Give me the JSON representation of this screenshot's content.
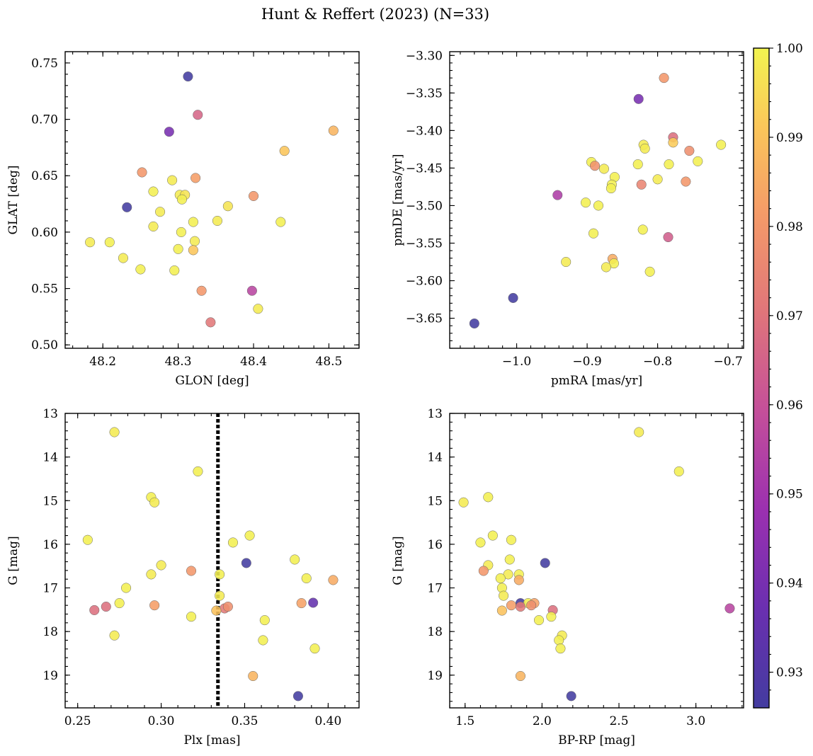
{
  "figure": {
    "title": "Hunt & Reffert (2023) (N=33)"
  },
  "colorbar": {
    "min": 0.926,
    "max": 1.0,
    "ticks": [
      "0.93",
      "0.94",
      "0.95",
      "0.96",
      "0.97",
      "0.98",
      "0.99",
      "1.00"
    ],
    "tick_values": [
      0.93,
      0.94,
      0.95,
      0.96,
      0.97,
      0.98,
      0.99,
      1.0
    ],
    "colormap": "plasma"
  },
  "chart_data": [
    {
      "type": "scatter",
      "xlabel": "GLON [deg]",
      "ylabel": "GLAT [deg]",
      "xlim": [
        48.15,
        48.54
      ],
      "ylim": [
        0.497,
        0.76
      ],
      "xticks": [
        48.2,
        48.3,
        48.4,
        48.5
      ],
      "xtick_labels": [
        "48.2",
        "48.3",
        "48.4",
        "48.5"
      ],
      "yticks": [
        0.5,
        0.55,
        0.6,
        0.65,
        0.7,
        0.75
      ],
      "ytick_labels": [
        "0.50",
        "0.55",
        "0.60",
        "0.65",
        "0.70",
        "0.75"
      ],
      "points": [
        {
          "x": 48.313,
          "y": 0.738,
          "c": 0.926
        },
        {
          "x": 48.326,
          "y": 0.704,
          "c": 0.966
        },
        {
          "x": 48.288,
          "y": 0.689,
          "c": 0.94
        },
        {
          "x": 48.506,
          "y": 0.69,
          "c": 0.987
        },
        {
          "x": 48.441,
          "y": 0.672,
          "c": 0.991
        },
        {
          "x": 48.252,
          "y": 0.653,
          "c": 0.98
        },
        {
          "x": 48.292,
          "y": 0.646,
          "c": 0.998
        },
        {
          "x": 48.323,
          "y": 0.648,
          "c": 0.982
        },
        {
          "x": 48.267,
          "y": 0.636,
          "c": 0.999
        },
        {
          "x": 48.302,
          "y": 0.633,
          "c": 0.998
        },
        {
          "x": 48.309,
          "y": 0.633,
          "c": 0.997
        },
        {
          "x": 48.305,
          "y": 0.629,
          "c": 0.999
        },
        {
          "x": 48.4,
          "y": 0.632,
          "c": 0.98
        },
        {
          "x": 48.366,
          "y": 0.623,
          "c": 0.997
        },
        {
          "x": 48.232,
          "y": 0.622,
          "c": 0.926
        },
        {
          "x": 48.276,
          "y": 0.618,
          "c": 0.998
        },
        {
          "x": 48.352,
          "y": 0.61,
          "c": 0.998
        },
        {
          "x": 48.32,
          "y": 0.609,
          "c": 0.999
        },
        {
          "x": 48.436,
          "y": 0.609,
          "c": 0.999
        },
        {
          "x": 48.267,
          "y": 0.605,
          "c": 0.998
        },
        {
          "x": 48.304,
          "y": 0.6,
          "c": 0.999
        },
        {
          "x": 48.322,
          "y": 0.592,
          "c": 0.998
        },
        {
          "x": 48.183,
          "y": 0.591,
          "c": 0.998
        },
        {
          "x": 48.209,
          "y": 0.591,
          "c": 0.999
        },
        {
          "x": 48.3,
          "y": 0.585,
          "c": 0.999
        },
        {
          "x": 48.32,
          "y": 0.584,
          "c": 0.991
        },
        {
          "x": 48.227,
          "y": 0.577,
          "c": 0.998
        },
        {
          "x": 48.25,
          "y": 0.567,
          "c": 0.999
        },
        {
          "x": 48.295,
          "y": 0.566,
          "c": 0.999
        },
        {
          "x": 48.331,
          "y": 0.548,
          "c": 0.98
        },
        {
          "x": 48.398,
          "y": 0.548,
          "c": 0.956
        },
        {
          "x": 48.406,
          "y": 0.532,
          "c": 0.998
        },
        {
          "x": 48.343,
          "y": 0.52,
          "c": 0.971
        }
      ]
    },
    {
      "type": "scatter",
      "xlabel": "pmRA [mas/yr]",
      "ylabel": "pmDE [mas/yr]",
      "xlim": [
        -1.095,
        -0.678
      ],
      "ylim": [
        -3.69,
        -3.295
      ],
      "xticks": [
        -1.0,
        -0.9,
        -0.8,
        -0.7
      ],
      "xtick_labels": [
        "−1.0",
        "−0.9",
        "−0.8",
        "−0.7"
      ],
      "yticks": [
        -3.65,
        -3.6,
        -3.55,
        -3.5,
        -3.45,
        -3.4,
        -3.35,
        -3.3
      ],
      "ytick_labels": [
        "−3.65",
        "−3.60",
        "−3.55",
        "−3.50",
        "−3.45",
        "−3.40",
        "−3.35",
        "−3.30"
      ],
      "points": [
        {
          "x": -0.791,
          "y": -3.33,
          "c": 0.98
        },
        {
          "x": -0.827,
          "y": -3.358,
          "c": 0.94
        },
        {
          "x": -0.778,
          "y": -3.409,
          "c": 0.969
        },
        {
          "x": -0.778,
          "y": -3.416,
          "c": 0.992
        },
        {
          "x": -0.71,
          "y": -3.419,
          "c": 0.999
        },
        {
          "x": -0.82,
          "y": -3.419,
          "c": 0.998
        },
        {
          "x": -0.818,
          "y": -3.424,
          "c": 0.998
        },
        {
          "x": -0.755,
          "y": -3.427,
          "c": 0.978
        },
        {
          "x": -0.894,
          "y": -3.442,
          "c": 0.999
        },
        {
          "x": -0.743,
          "y": -3.441,
          "c": 0.999
        },
        {
          "x": -0.889,
          "y": -3.447,
          "c": 0.979
        },
        {
          "x": -0.828,
          "y": -3.445,
          "c": 0.999
        },
        {
          "x": -0.784,
          "y": -3.445,
          "c": 0.999
        },
        {
          "x": -0.876,
          "y": -3.451,
          "c": 0.998
        },
        {
          "x": -0.861,
          "y": -3.462,
          "c": 0.999
        },
        {
          "x": -0.8,
          "y": -3.465,
          "c": 0.998
        },
        {
          "x": -0.76,
          "y": -3.468,
          "c": 0.98
        },
        {
          "x": -0.865,
          "y": -3.472,
          "c": 0.999
        },
        {
          "x": -0.823,
          "y": -3.472,
          "c": 0.975
        },
        {
          "x": -0.866,
          "y": -3.477,
          "c": 0.999
        },
        {
          "x": -0.942,
          "y": -3.486,
          "c": 0.953
        },
        {
          "x": -0.902,
          "y": -3.496,
          "c": 0.999
        },
        {
          "x": -0.884,
          "y": -3.5,
          "c": 0.999
        },
        {
          "x": -0.821,
          "y": -3.532,
          "c": 0.999
        },
        {
          "x": -0.891,
          "y": -3.537,
          "c": 0.999
        },
        {
          "x": -0.785,
          "y": -3.542,
          "c": 0.964
        },
        {
          "x": -0.864,
          "y": -3.571,
          "c": 0.985
        },
        {
          "x": -0.93,
          "y": -3.575,
          "c": 0.998
        },
        {
          "x": -0.862,
          "y": -3.577,
          "c": 0.999
        },
        {
          "x": -0.873,
          "y": -3.582,
          "c": 0.998
        },
        {
          "x": -0.811,
          "y": -3.588,
          "c": 0.999
        },
        {
          "x": -1.005,
          "y": -3.623,
          "c": 0.926
        },
        {
          "x": -1.06,
          "y": -3.657,
          "c": 0.926
        }
      ]
    },
    {
      "type": "scatter",
      "xlabel": "Plx [mas]",
      "ylabel": "G [mag]",
      "xlim": [
        0.2425,
        0.4185
      ],
      "ylim": [
        19.75,
        13.0
      ],
      "y_inverted": true,
      "vline": {
        "x": 0.334,
        "style": "dotted"
      },
      "xticks": [
        0.25,
        0.3,
        0.35,
        0.4
      ],
      "xtick_labels": [
        "0.25",
        "0.30",
        "0.35",
        "0.40"
      ],
      "yticks": [
        13,
        14,
        15,
        16,
        17,
        18,
        19
      ],
      "ytick_labels": [
        "13",
        "14",
        "15",
        "16",
        "17",
        "18",
        "19"
      ],
      "points": [
        {
          "x": 0.272,
          "y": 13.43,
          "c": 0.998
        },
        {
          "x": 0.322,
          "y": 14.33,
          "c": 0.999
        },
        {
          "x": 0.294,
          "y": 14.92,
          "c": 0.999
        },
        {
          "x": 0.296,
          "y": 15.04,
          "c": 0.998
        },
        {
          "x": 0.256,
          "y": 15.9,
          "c": 0.999
        },
        {
          "x": 0.353,
          "y": 15.8,
          "c": 0.999
        },
        {
          "x": 0.343,
          "y": 15.96,
          "c": 0.999
        },
        {
          "x": 0.38,
          "y": 16.35,
          "c": 0.999
        },
        {
          "x": 0.351,
          "y": 16.43,
          "c": 0.926
        },
        {
          "x": 0.3,
          "y": 16.48,
          "c": 0.998
        },
        {
          "x": 0.318,
          "y": 16.61,
          "c": 0.98
        },
        {
          "x": 0.294,
          "y": 16.69,
          "c": 0.998
        },
        {
          "x": 0.335,
          "y": 16.69,
          "c": 0.999
        },
        {
          "x": 0.387,
          "y": 16.78,
          "c": 0.999
        },
        {
          "x": 0.403,
          "y": 16.82,
          "c": 0.985
        },
        {
          "x": 0.279,
          "y": 17.0,
          "c": 0.999
        },
        {
          "x": 0.335,
          "y": 17.18,
          "c": 0.998
        },
        {
          "x": 0.275,
          "y": 17.35,
          "c": 0.999
        },
        {
          "x": 0.384,
          "y": 17.35,
          "c": 0.983
        },
        {
          "x": 0.391,
          "y": 17.34,
          "c": 0.935
        },
        {
          "x": 0.296,
          "y": 17.4,
          "c": 0.982
        },
        {
          "x": 0.267,
          "y": 17.43,
          "c": 0.969
        },
        {
          "x": 0.338,
          "y": 17.47,
          "c": 0.972
        },
        {
          "x": 0.34,
          "y": 17.43,
          "c": 0.978
        },
        {
          "x": 0.26,
          "y": 17.51,
          "c": 0.969
        },
        {
          "x": 0.333,
          "y": 17.52,
          "c": 0.99
        },
        {
          "x": 0.318,
          "y": 17.66,
          "c": 0.999
        },
        {
          "x": 0.362,
          "y": 17.74,
          "c": 0.999
        },
        {
          "x": 0.272,
          "y": 18.09,
          "c": 0.998
        },
        {
          "x": 0.361,
          "y": 18.2,
          "c": 0.999
        },
        {
          "x": 0.392,
          "y": 18.39,
          "c": 0.999
        },
        {
          "x": 0.355,
          "y": 19.02,
          "c": 0.987
        },
        {
          "x": 0.382,
          "y": 19.48,
          "c": 0.926
        }
      ]
    },
    {
      "type": "scatter",
      "xlabel": "BP-RP [mag]",
      "ylabel": "G [mag]",
      "xlim": [
        1.4,
        3.31
      ],
      "ylim": [
        19.75,
        13.0
      ],
      "y_inverted": true,
      "xticks": [
        1.5,
        2.0,
        2.5,
        3.0
      ],
      "xtick_labels": [
        "1.5",
        "2.0",
        "2.5",
        "3.0"
      ],
      "yticks": [
        13,
        14,
        15,
        16,
        17,
        18,
        19
      ],
      "ytick_labels": [
        "13",
        "14",
        "15",
        "16",
        "17",
        "18",
        "19"
      ],
      "points": [
        {
          "x": 2.63,
          "y": 13.43,
          "c": 0.998
        },
        {
          "x": 2.89,
          "y": 14.33,
          "c": 0.999
        },
        {
          "x": 1.65,
          "y": 14.92,
          "c": 0.999
        },
        {
          "x": 1.49,
          "y": 15.04,
          "c": 0.998
        },
        {
          "x": 1.68,
          "y": 15.8,
          "c": 0.999
        },
        {
          "x": 1.8,
          "y": 15.9,
          "c": 0.999
        },
        {
          "x": 1.6,
          "y": 15.96,
          "c": 0.999
        },
        {
          "x": 1.79,
          "y": 16.35,
          "c": 0.999
        },
        {
          "x": 2.02,
          "y": 16.43,
          "c": 0.926
        },
        {
          "x": 1.65,
          "y": 16.48,
          "c": 0.998
        },
        {
          "x": 1.62,
          "y": 16.61,
          "c": 0.98
        },
        {
          "x": 1.78,
          "y": 16.69,
          "c": 0.998
        },
        {
          "x": 1.85,
          "y": 16.69,
          "c": 0.999
        },
        {
          "x": 1.73,
          "y": 16.78,
          "c": 0.999
        },
        {
          "x": 1.85,
          "y": 16.82,
          "c": 0.985
        },
        {
          "x": 1.74,
          "y": 17.0,
          "c": 0.999
        },
        {
          "x": 1.75,
          "y": 17.18,
          "c": 0.998
        },
        {
          "x": 1.86,
          "y": 17.35,
          "c": 0.926
        },
        {
          "x": 1.91,
          "y": 17.35,
          "c": 0.999
        },
        {
          "x": 1.95,
          "y": 17.35,
          "c": 0.983
        },
        {
          "x": 1.93,
          "y": 17.4,
          "c": 0.978
        },
        {
          "x": 1.8,
          "y": 17.4,
          "c": 0.982
        },
        {
          "x": 1.86,
          "y": 17.43,
          "c": 0.972
        },
        {
          "x": 3.22,
          "y": 17.47,
          "c": 0.956
        },
        {
          "x": 2.07,
          "y": 17.51,
          "c": 0.969
        },
        {
          "x": 1.74,
          "y": 17.52,
          "c": 0.99
        },
        {
          "x": 2.06,
          "y": 17.66,
          "c": 0.999
        },
        {
          "x": 1.98,
          "y": 17.74,
          "c": 0.999
        },
        {
          "x": 2.13,
          "y": 18.09,
          "c": 0.998
        },
        {
          "x": 2.11,
          "y": 18.2,
          "c": 0.999
        },
        {
          "x": 2.12,
          "y": 18.39,
          "c": 0.999
        },
        {
          "x": 1.86,
          "y": 19.02,
          "c": 0.987
        },
        {
          "x": 2.19,
          "y": 19.48,
          "c": 0.926
        }
      ]
    }
  ]
}
